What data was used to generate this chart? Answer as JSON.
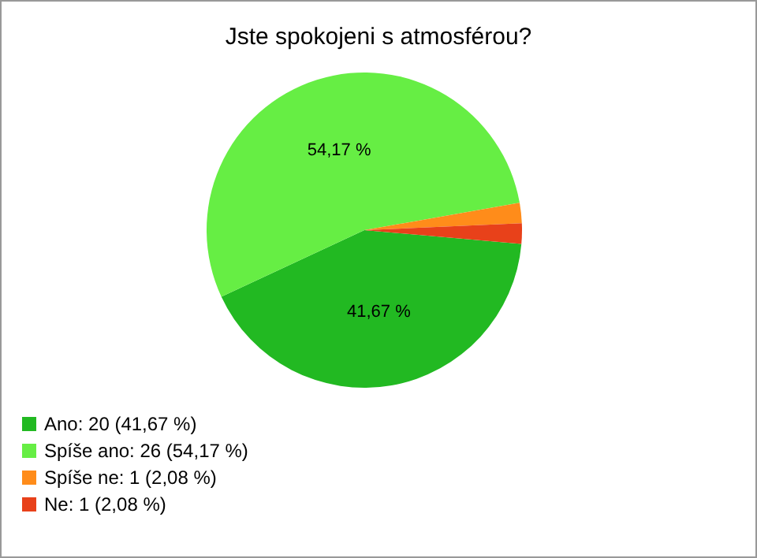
{
  "chart_data": {
    "type": "pie",
    "title": "Jste spokojeni s atmosférou?",
    "categories": [
      "Ano: 20 (41,67 %)",
      "Spíše ano: 26 (54,17 %)",
      "Spíše ne: 1 (2,08 %)",
      "Ne: 1 (2,08 %)"
    ],
    "values": [
      41.67,
      54.17,
      2.08,
      2.08
    ],
    "colors": [
      "#22b922",
      "#66ee44",
      "#ff8c1a",
      "#e8411a"
    ],
    "value_labels": [
      "41,67 %",
      "54,17 %",
      null,
      null
    ],
    "legend": "bottom left"
  }
}
